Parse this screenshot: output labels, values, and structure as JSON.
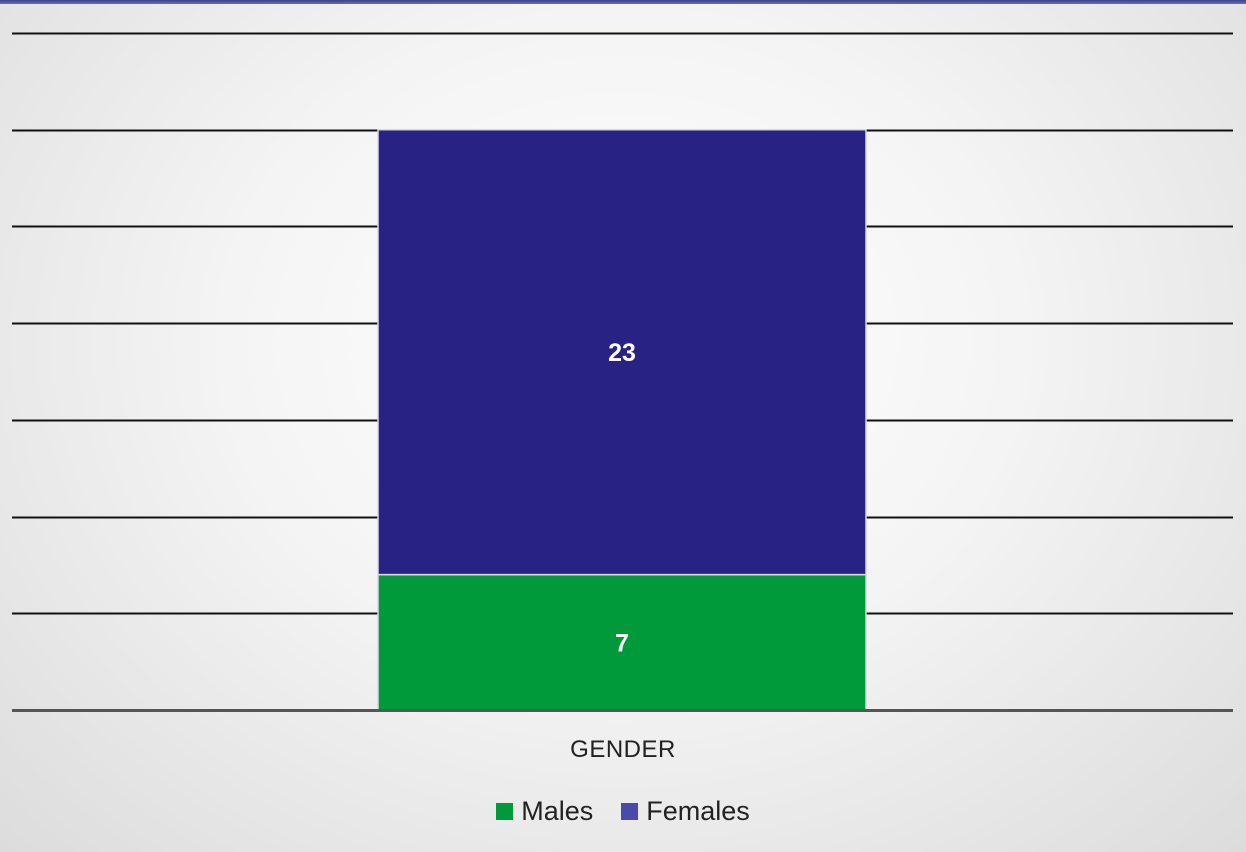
{
  "chart_data": {
    "type": "bar",
    "stacked": true,
    "categories": [
      "GENDER"
    ],
    "series": [
      {
        "name": "Males",
        "values": [
          7
        ],
        "color": "#009a3a"
      },
      {
        "name": "Females",
        "values": [
          23
        ],
        "color": "#282284"
      }
    ],
    "ylim": [
      0,
      35
    ],
    "grid": true,
    "legend_placement": "bottom",
    "data_labels": true
  }
}
